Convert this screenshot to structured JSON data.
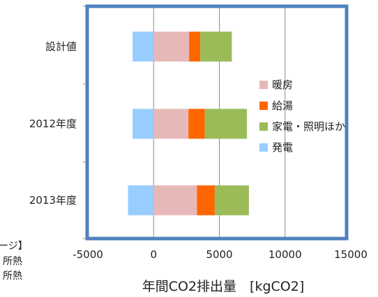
{
  "chart_data": {
    "type": "bar",
    "orientation": "horizontal",
    "stacked": true,
    "categories": [
      "設計値",
      "2012年度",
      "2013年度"
    ],
    "series": [
      {
        "name": "暖房",
        "color": "#e6b9b8",
        "values": [
          2700,
          2650,
          3300
        ]
      },
      {
        "name": "給湯",
        "color": "#ff6600",
        "values": [
          850,
          1250,
          1350
        ]
      },
      {
        "name": "家電・照明ほか",
        "color": "#9bbb59",
        "values": [
          2400,
          3200,
          2600
        ]
      },
      {
        "name": "発電",
        "color": "#99ccff",
        "values": [
          -1600,
          -1600,
          -1950
        ]
      }
    ],
    "xlim": [
      -5000,
      15000
    ],
    "xticks": [
      "-5000",
      "0",
      "5000",
      "10000",
      "15000"
    ],
    "xlabel": "年間CO2排出量　[kgCO2]",
    "ylabel": "",
    "title": "",
    "grid": "vertical",
    "legend_position": "right-inside"
  },
  "notes": {
    "lines": [
      "ージ】",
      "所熱",
      "所熱"
    ]
  }
}
